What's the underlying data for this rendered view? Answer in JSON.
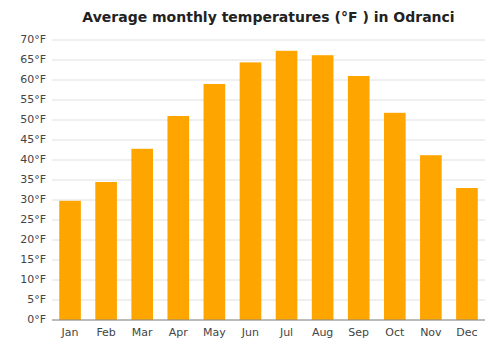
{
  "chart_data": {
    "type": "bar",
    "title": "Average monthly temperatures (°F ) in Odranci",
    "categories": [
      "Jan",
      "Feb",
      "Mar",
      "Apr",
      "May",
      "Jun",
      "Jul",
      "Aug",
      "Sep",
      "Oct",
      "Nov",
      "Dec"
    ],
    "values": [
      29.8,
      34.5,
      42.8,
      51.0,
      59.0,
      64.4,
      67.3,
      66.2,
      61.0,
      51.8,
      41.2,
      33.0
    ],
    "color": "#FFA500",
    "ylim": [
      0,
      70
    ],
    "yticks": [
      {
        "value": 0,
        "label": "0°F"
      },
      {
        "value": 5,
        "label": "5°F"
      },
      {
        "value": 10,
        "label": "10°F"
      },
      {
        "value": 15,
        "label": "15°F"
      },
      {
        "value": 20,
        "label": "20°F"
      },
      {
        "value": 25,
        "label": "25°F"
      },
      {
        "value": 30,
        "label": "30°F"
      },
      {
        "value": 35,
        "label": "35°F"
      },
      {
        "value": 40,
        "label": "40°F"
      },
      {
        "value": 45,
        "label": "45°F"
      },
      {
        "value": 50,
        "label": "50°F"
      },
      {
        "value": 55,
        "label": "55°F"
      },
      {
        "value": 60,
        "label": "60°F"
      },
      {
        "value": 65,
        "label": "65°F"
      },
      {
        "value": 70,
        "label": "70°F"
      }
    ],
    "grid": true
  }
}
